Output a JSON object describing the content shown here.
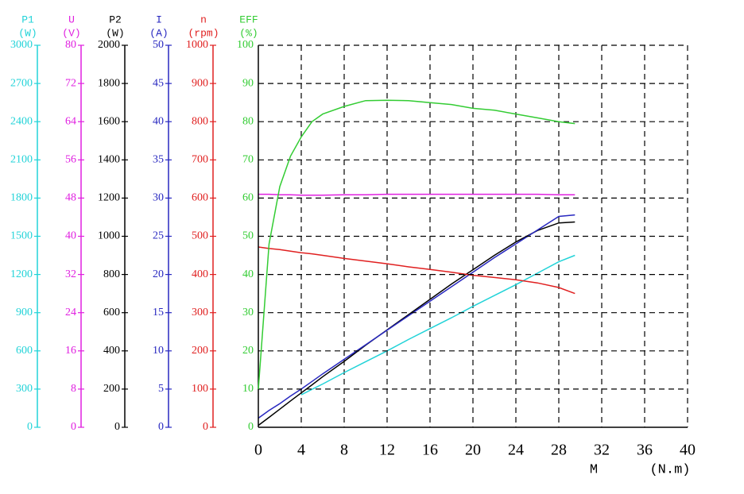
{
  "chart_data": {
    "type": "line",
    "x": [
      0,
      1,
      2,
      3,
      4,
      5,
      6,
      8,
      10,
      12,
      14,
      16,
      18,
      20,
      22,
      24,
      26,
      28,
      29.5
    ],
    "xlim": [
      0,
      40
    ],
    "xticks": [
      0,
      4,
      8,
      12,
      16,
      20,
      24,
      28,
      32,
      36,
      40
    ],
    "xlabel": "M",
    "xunit": "(N.m)",
    "grid": true,
    "y_axes": [
      {
        "name": "P1",
        "unit": "(W)",
        "color": "#22d3d8",
        "ylim": [
          0,
          3000
        ],
        "yticks": [
          0,
          300,
          600,
          900,
          1200,
          1500,
          1800,
          2100,
          2400,
          2700,
          3000
        ],
        "values": [
          null,
          null,
          null,
          null,
          255,
          298,
          340,
          430,
          515,
          600,
          690,
          775,
          860,
          950,
          1035,
          1120,
          1210,
          1300,
          1350
        ]
      },
      {
        "name": "U",
        "unit": "(V)",
        "color": "#e020e0",
        "ylim": [
          0,
          80
        ],
        "yticks": [
          0,
          8,
          16,
          24,
          32,
          40,
          48,
          56,
          64,
          72,
          80
        ],
        "values": [
          48.8,
          48.8,
          48.7,
          48.7,
          48.6,
          48.6,
          48.6,
          48.7,
          48.7,
          48.8,
          48.8,
          48.8,
          48.8,
          48.8,
          48.8,
          48.8,
          48.8,
          48.7,
          48.7
        ]
      },
      {
        "name": "P2",
        "unit": "(W)",
        "color": "#000000",
        "ylim": [
          0,
          2000
        ],
        "yticks": [
          0,
          200,
          400,
          600,
          800,
          1000,
          1200,
          1400,
          1600,
          1800,
          2000
        ],
        "values": [
          10,
          52,
          95,
          138,
          180,
          222,
          265,
          345,
          430,
          510,
          590,
          670,
          750,
          825,
          900,
          970,
          1030,
          1070,
          1075
        ]
      },
      {
        "name": "I",
        "unit": "(A)",
        "color": "#2828c0",
        "ylim": [
          0,
          50
        ],
        "yticks": [
          0,
          5,
          10,
          15,
          20,
          25,
          30,
          35,
          40,
          45,
          50
        ],
        "values": [
          1.2,
          2.2,
          3.1,
          4.1,
          5.0,
          6.0,
          7.0,
          8.9,
          10.8,
          12.7,
          14.6,
          16.5,
          18.4,
          20.3,
          22.2,
          24.0,
          25.8,
          27.6,
          27.8
        ]
      },
      {
        "name": "n",
        "unit": "(rpm)",
        "color": "#e02020",
        "ylim": [
          0,
          1000
        ],
        "yticks": [
          0,
          100,
          200,
          300,
          400,
          500,
          600,
          700,
          800,
          900,
          1000
        ],
        "values": [
          472,
          468,
          465,
          461,
          457,
          454,
          450,
          442,
          435,
          428,
          420,
          413,
          406,
          398,
          392,
          386,
          378,
          366,
          350
        ]
      },
      {
        "name": "EFF",
        "unit": "(%)",
        "color": "#33cc33",
        "ylim": [
          0,
          100
        ],
        "yticks": [
          0,
          10,
          20,
          30,
          40,
          50,
          60,
          70,
          80,
          90,
          100
        ],
        "values": [
          10,
          48,
          63,
          71,
          76,
          80,
          82,
          84,
          85.5,
          85.6,
          85.5,
          85,
          84.5,
          83.5,
          83,
          82,
          81,
          80,
          79.5
        ]
      }
    ]
  }
}
